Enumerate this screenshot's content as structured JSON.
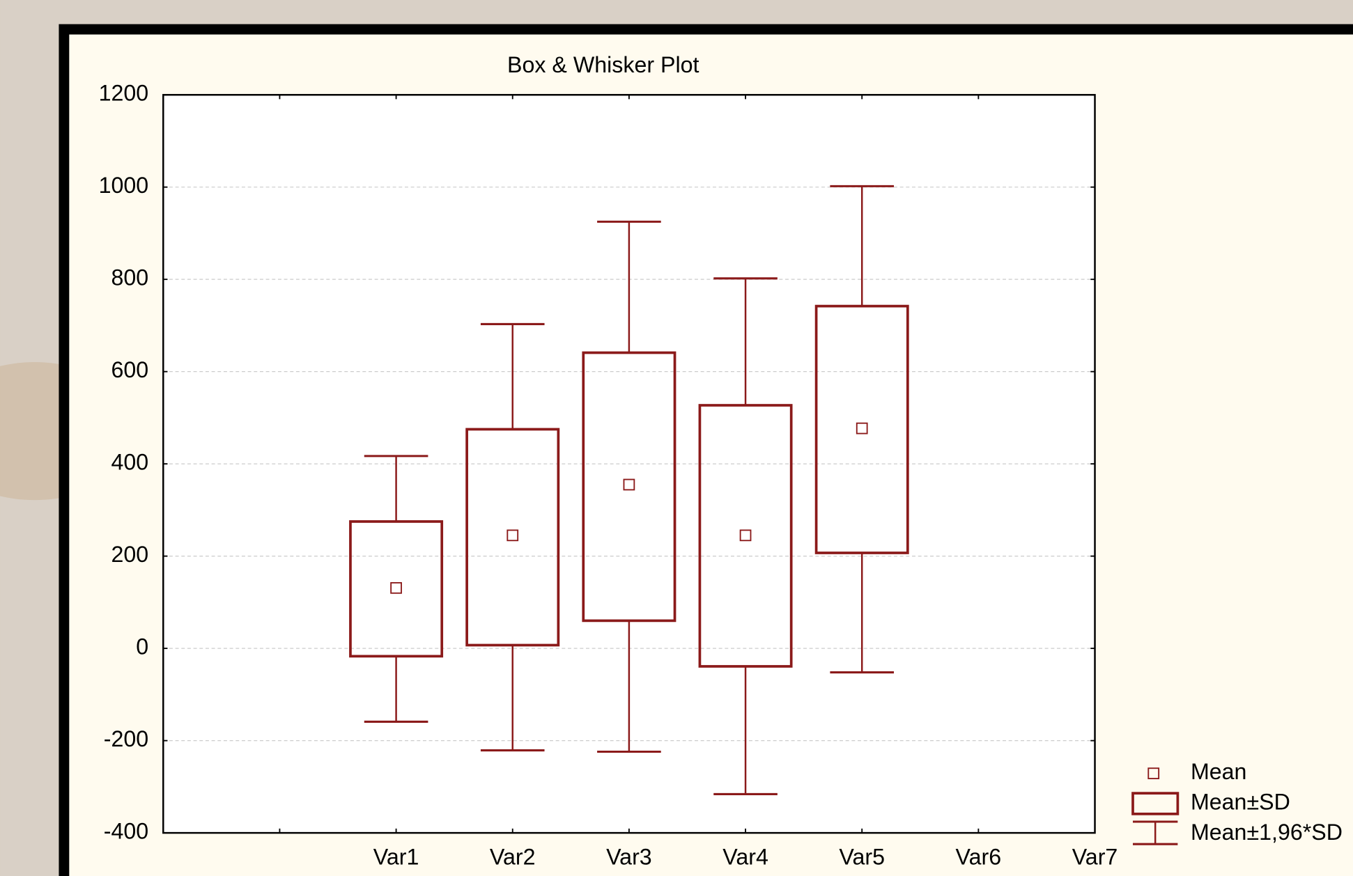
{
  "chart_data": {
    "type": "box",
    "title": "Box & Whisker Plot",
    "categories": [
      null,
      "Var1",
      "Var2",
      "Var3",
      "Var4",
      "Var5",
      "Var6",
      "Var7"
    ],
    "mean": [
      null,
      131,
      245,
      355,
      245,
      477,
      null,
      null
    ],
    "sd_low": [
      null,
      -17,
      7,
      60,
      -39,
      207,
      null,
      null
    ],
    "sd_high": [
      null,
      275,
      475,
      641,
      527,
      742,
      null,
      null
    ],
    "ci_low": [
      null,
      -159,
      -221,
      -224,
      -316,
      -52,
      null,
      null
    ],
    "ci_high": [
      null,
      417,
      703,
      925,
      802,
      1002,
      null,
      null
    ],
    "legend": [
      "Mean",
      "Mean±SD",
      "Mean±1,96*SD"
    ],
    "color": "#8b1a1a",
    "ylim": [
      -400,
      1200
    ],
    "yticks": [
      -400,
      -200,
      0,
      200,
      400,
      600,
      800,
      1000,
      1200
    ],
    "grid": true,
    "legend_position": "bottom-right"
  }
}
